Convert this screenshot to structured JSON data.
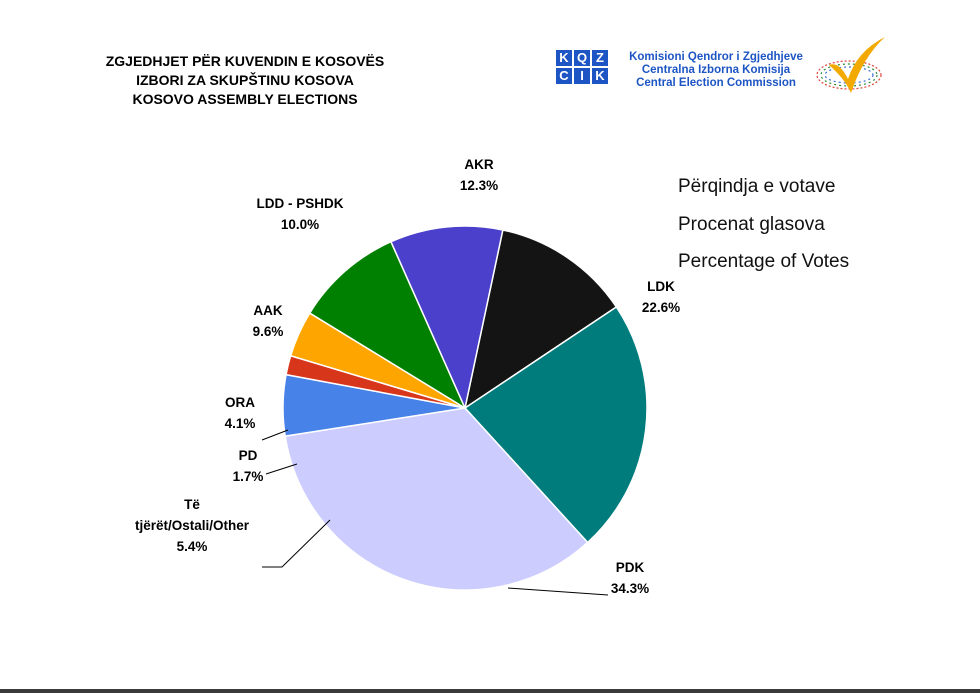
{
  "header": {
    "title_lines": [
      "ZGJEDHJET PËR KUVENDIN E KOSOVËS",
      "IZBORI ZA SKUPŠTINU KOSOVA",
      "KOSOVO ASSEMBLY ELECTIONS"
    ],
    "logo_letters": [
      "K",
      "Q",
      "Z",
      "C",
      "I",
      "K"
    ],
    "commission_lines": [
      "Komisioni Qendror i Zgjedhjeve",
      "Centralna Izborna Komisija",
      "Central Election Commission"
    ]
  },
  "legend_lines": [
    "Përqindja e votave",
    "Procenat glasova",
    "Percentage of Votes"
  ],
  "colors": {
    "logo_blue": "#1d55c4",
    "check_orange": "#f2a900"
  },
  "chart_data": {
    "type": "pie",
    "title": "Përqindja e votave / Procenat glasova / Percentage of Votes",
    "start_angle_deg": 78,
    "direction": "clockwise",
    "slices": [
      {
        "name": "AKR",
        "value": 12.3,
        "color": "#141414",
        "label_lines": [
          "AKR"
        ],
        "value_label": "12.3%"
      },
      {
        "name": "LDK",
        "value": 22.6,
        "color": "#007c7c",
        "label_lines": [
          "LDK"
        ],
        "value_label": "22.6%"
      },
      {
        "name": "PDK",
        "value": 34.3,
        "color": "#ccccff",
        "label_lines": [
          "PDK"
        ],
        "value_label": "34.3%"
      },
      {
        "name": "Të tjërët/Ostali/Other",
        "value": 5.4,
        "color": "#4682e8",
        "label_lines": [
          "Të",
          "tjërët/Ostali/Other"
        ],
        "value_label": "5.4%"
      },
      {
        "name": "PD",
        "value": 1.7,
        "color": "#d8361a",
        "label_lines": [
          "PD"
        ],
        "value_label": "1.7%"
      },
      {
        "name": "ORA",
        "value": 4.1,
        "color": "#ffa500",
        "label_lines": [
          "ORA"
        ],
        "value_label": "4.1%"
      },
      {
        "name": "AAK",
        "value": 9.6,
        "color": "#008000",
        "label_lines": [
          "AAK"
        ],
        "value_label": "9.6%"
      },
      {
        "name": "LDD - PSHDK",
        "value": 10.0,
        "color": "#4a40cc",
        "label_lines": [
          "LDD - PSHDK"
        ],
        "value_label": "10.0%"
      }
    ]
  }
}
